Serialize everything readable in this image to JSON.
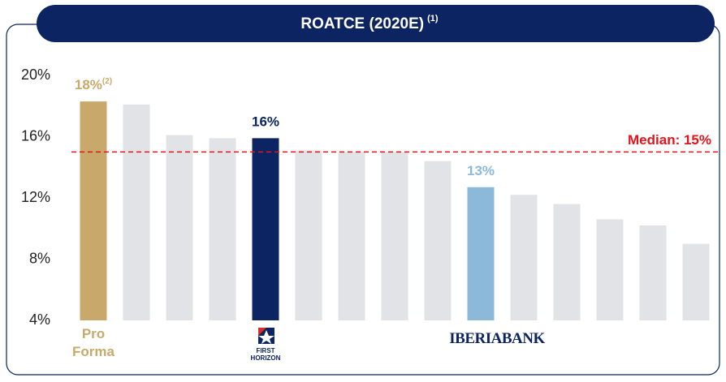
{
  "chart_data": {
    "type": "bar",
    "title": "ROATCE (2020E)",
    "title_note": "(1)",
    "categories": [
      "Pro Forma",
      null,
      null,
      null,
      "FIRST HORIZON",
      null,
      null,
      null,
      null,
      "IBERIABANK",
      null,
      null,
      null,
      null,
      null
    ],
    "values": [
      18.3,
      18.1,
      16.1,
      15.9,
      15.9,
      15.1,
      15.0,
      15.0,
      14.4,
      12.7,
      12.2,
      11.6,
      10.6,
      10.2,
      9.0
    ],
    "value_labels": [
      "18%",
      null,
      null,
      null,
      "16%",
      null,
      null,
      null,
      null,
      "13%",
      null,
      null,
      null,
      null,
      null
    ],
    "value_label_notes": [
      "(2)",
      null,
      null,
      null,
      null,
      null,
      null,
      null,
      null,
      null,
      null,
      null,
      null,
      null,
      null
    ],
    "colors": [
      "#c9a96b",
      "#e2e3e7",
      "#e2e3e7",
      "#e2e3e7",
      "#0c2461",
      "#e2e3e7",
      "#e2e3e7",
      "#e2e3e7",
      "#e2e3e7",
      "#8cb9da",
      "#e2e3e7",
      "#e2e3e7",
      "#e2e3e7",
      "#e2e3e7",
      "#e2e3e7"
    ],
    "ylim": [
      4,
      20
    ],
    "yticks": [
      {
        "value": 4,
        "label": "4%"
      },
      {
        "value": 8,
        "label": "8%"
      },
      {
        "value": 12,
        "label": "12%"
      },
      {
        "value": 16,
        "label": "16%"
      },
      {
        "value": 20,
        "label": "20%"
      }
    ],
    "median": {
      "value": 15,
      "label": "Median: 15%",
      "color": "#e3141c"
    }
  }
}
